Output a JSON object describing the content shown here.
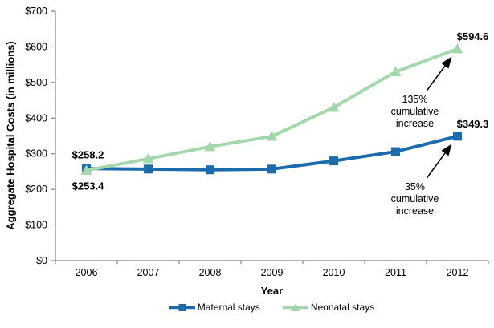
{
  "chart_data": {
    "type": "line",
    "title": "",
    "xlabel": "Year",
    "ylabel": "Aggregate Hospital Costs (in millions)",
    "categories": [
      "2006",
      "2007",
      "2008",
      "2009",
      "2010",
      "2011",
      "2012"
    ],
    "ylim": [
      0,
      700
    ],
    "ytick_step": 100,
    "ytick_prefix": "$",
    "grid": false,
    "legend_position": "bottom",
    "axis_color": "#808080",
    "text_color": "#000000",
    "series": [
      {
        "name": "Maternal stays",
        "marker": "square",
        "color": "#1c6bad",
        "values": [
          258.2,
          257,
          255,
          257,
          280,
          306,
          349.3
        ]
      },
      {
        "name": "Neonatal stays",
        "marker": "triangle",
        "color": "#a5d7ad",
        "values": [
          253.4,
          286,
          320,
          349,
          430,
          530,
          594.6
        ]
      }
    ],
    "point_labels": [
      {
        "series": 0,
        "index": 0,
        "text": "$258.2",
        "position": "above"
      },
      {
        "series": 1,
        "index": 0,
        "text": "$253.4",
        "position": "below"
      },
      {
        "series": 1,
        "index": 6,
        "text": "$594.6",
        "position": "above-right"
      },
      {
        "series": 0,
        "index": 6,
        "text": "$349.3",
        "position": "above-right"
      }
    ],
    "annotations": [
      {
        "lines": [
          "135%",
          "cumulative",
          "increase"
        ],
        "series": 1,
        "index": 6
      },
      {
        "lines": [
          "35%",
          "cumulative",
          "increase"
        ],
        "series": 0,
        "index": 6
      }
    ]
  }
}
